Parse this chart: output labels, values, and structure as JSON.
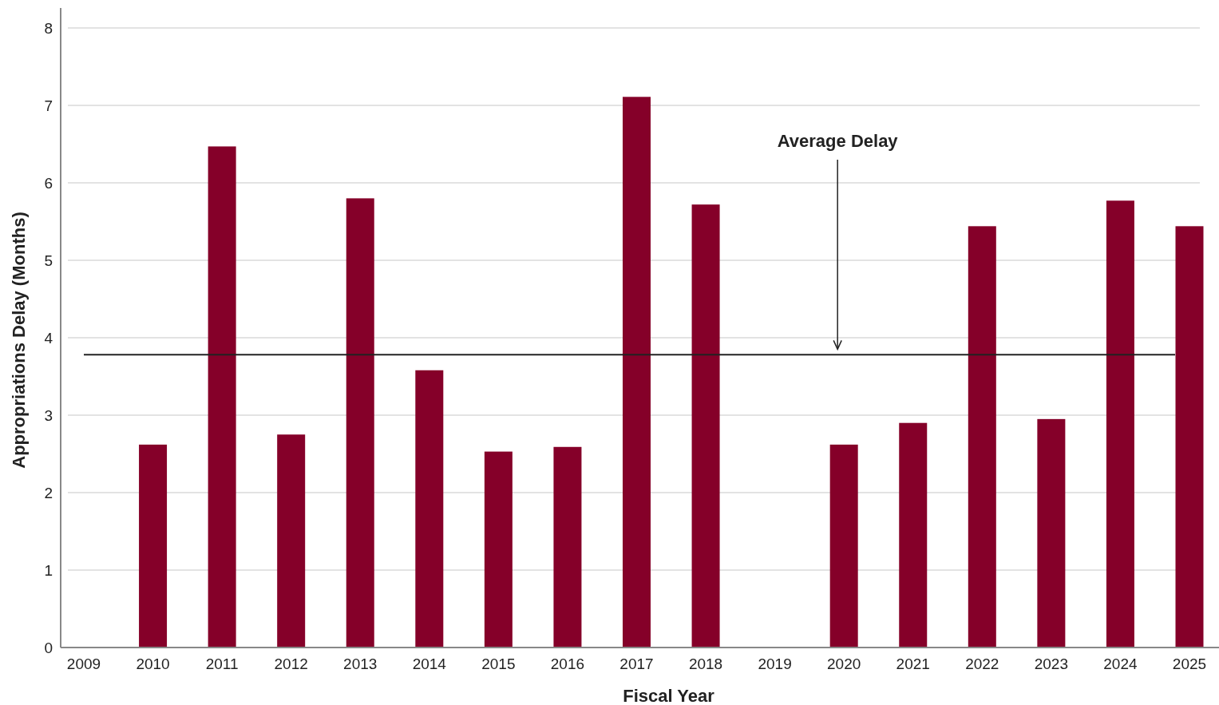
{
  "chart_data": {
    "type": "bar",
    "xlabel": "Fiscal Year",
    "ylabel": "Appropriations Delay (Months)",
    "categories": [
      "2009",
      "2010",
      "2011",
      "2012",
      "2013",
      "2014",
      "2015",
      "2016",
      "2017",
      "2018",
      "2019",
      "2020",
      "2021",
      "2022",
      "2023",
      "2024",
      "2025"
    ],
    "values": [
      null,
      2.62,
      6.47,
      2.75,
      5.8,
      3.58,
      2.53,
      2.59,
      7.11,
      5.72,
      null,
      2.62,
      2.9,
      5.44,
      2.95,
      5.77,
      5.44
    ],
    "color": "#850029",
    "ylim": [
      0,
      8
    ],
    "yticks": [
      0,
      1,
      2,
      3,
      4,
      5,
      6,
      7,
      8
    ],
    "grid": "y",
    "ref_lines": [
      {
        "axis": "y",
        "value": 3.78,
        "label": "Average Delay",
        "color": "#222222",
        "line_style": "solid"
      }
    ]
  }
}
